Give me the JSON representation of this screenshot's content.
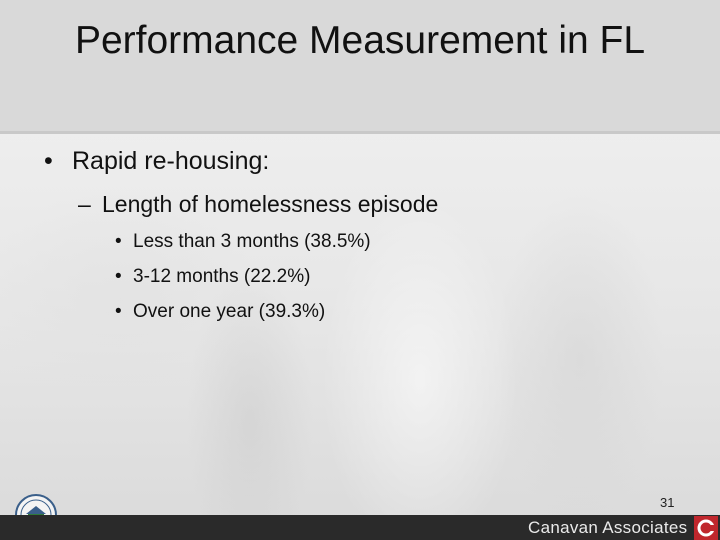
{
  "slide": {
    "title": "Performance Measurement in FL",
    "bullet_l1": "Rapid re-housing:",
    "bullet_l2": "Length of homelessness episode",
    "sub_bullets": [
      "Less than 3 months (38.5%)",
      "3-12 months (22.2%)",
      "Over one year (39.3%)"
    ],
    "page_number": "31"
  },
  "footer": {
    "brand": "Canavan Associates"
  },
  "icons": {
    "seal": "hud-seal-icon",
    "logo": "canavan-logo-icon"
  },
  "colors": {
    "title_bar": "#d9d9d9",
    "footer_bar": "#2a2a2a",
    "logo_red": "#c0272d"
  }
}
